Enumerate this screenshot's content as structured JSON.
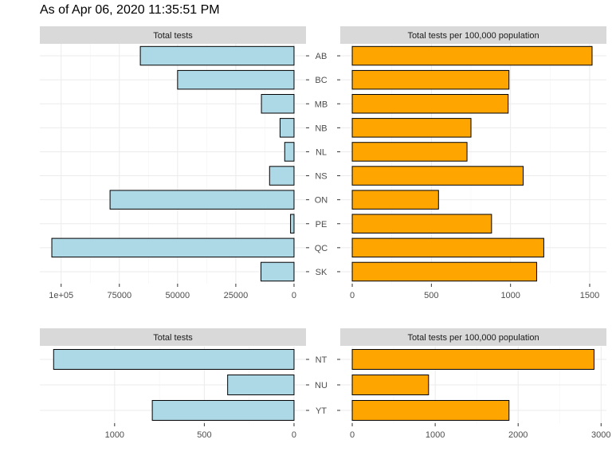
{
  "title": "As of  Apr 06, 2020 11:35:51 PM",
  "colors": {
    "left_bar": "#add8e6",
    "right_bar": "#ffa500",
    "strip": "#d9d9d9",
    "grid": "#ebebeb",
    "axis_text": "#4d4d4d"
  },
  "chart_data": [
    {
      "type": "bar",
      "orientation": "horizontal",
      "group": "provinces",
      "facet_label": "Total tests",
      "x_reversed": true,
      "xlim": [
        104000,
        0
      ],
      "ticks": [
        100000,
        75000,
        50000,
        25000,
        0
      ],
      "tick_labels": [
        "1e+05",
        "75000",
        "50000",
        "25000",
        "0"
      ],
      "categories": [
        "AB",
        "BC",
        "MB",
        "NB",
        "NL",
        "NS",
        "ON",
        "PE",
        "QC",
        "SK"
      ],
      "values": [
        66000,
        50000,
        14000,
        6000,
        4000,
        10500,
        79000,
        1500,
        104000,
        14200
      ]
    },
    {
      "type": "bar",
      "orientation": "horizontal",
      "group": "provinces",
      "facet_label": "Total tests per 100,000 population",
      "xlim": [
        0,
        1530
      ],
      "ticks": [
        0,
        500,
        1000,
        1500
      ],
      "tick_labels": [
        "0",
        "500",
        "1000",
        "1500"
      ],
      "categories": [
        "AB",
        "BC",
        "MB",
        "NB",
        "NL",
        "NS",
        "ON",
        "PE",
        "QC",
        "SK"
      ],
      "values": [
        1515,
        990,
        985,
        750,
        725,
        1080,
        545,
        880,
        1210,
        1165
      ]
    },
    {
      "type": "bar",
      "orientation": "horizontal",
      "group": "territories",
      "facet_label": "Total tests",
      "x_reversed": true,
      "xlim": [
        1350,
        0
      ],
      "ticks": [
        1000,
        500,
        0
      ],
      "tick_labels": [
        "1000",
        "500",
        "0"
      ],
      "categories": [
        "NT",
        "NU",
        "YT"
      ],
      "values": [
        1340,
        370,
        790
      ]
    },
    {
      "type": "bar",
      "orientation": "horizontal",
      "group": "territories",
      "facet_label": "Total tests per 100,000 population",
      "xlim": [
        0,
        2920
      ],
      "ticks": [
        0,
        1000,
        2000,
        3000
      ],
      "tick_labels": [
        "0",
        "1000",
        "2000",
        "3000"
      ],
      "categories": [
        "NT",
        "NU",
        "YT"
      ],
      "values": [
        2915,
        920,
        1890
      ]
    }
  ]
}
